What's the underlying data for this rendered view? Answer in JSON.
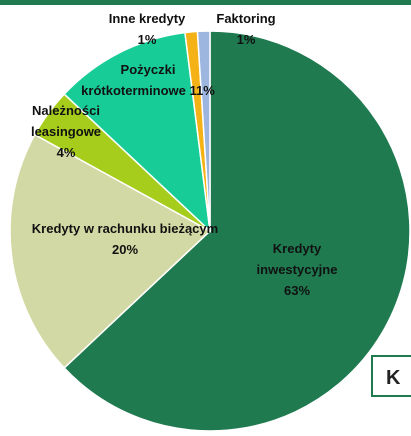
{
  "chart_data": {
    "type": "pie",
    "categories": [
      "Kredyty inwestycyjne",
      "Kredyty w rachunku bieżącym",
      "Należności leasingowe",
      "Pożyczki krótkoterminowe",
      "Inne kredyty",
      "Faktoring"
    ],
    "values": [
      63,
      20,
      4,
      11,
      1,
      1
    ],
    "value_labels": [
      "63%",
      "20%",
      "4%",
      "11%",
      "1%",
      "1%"
    ],
    "colors": [
      "#1f7a50",
      "#d3d9a4",
      "#a6cc1c",
      "#17cc96",
      "#f5b216",
      "#9cb6df"
    ],
    "annotation": "K"
  }
}
